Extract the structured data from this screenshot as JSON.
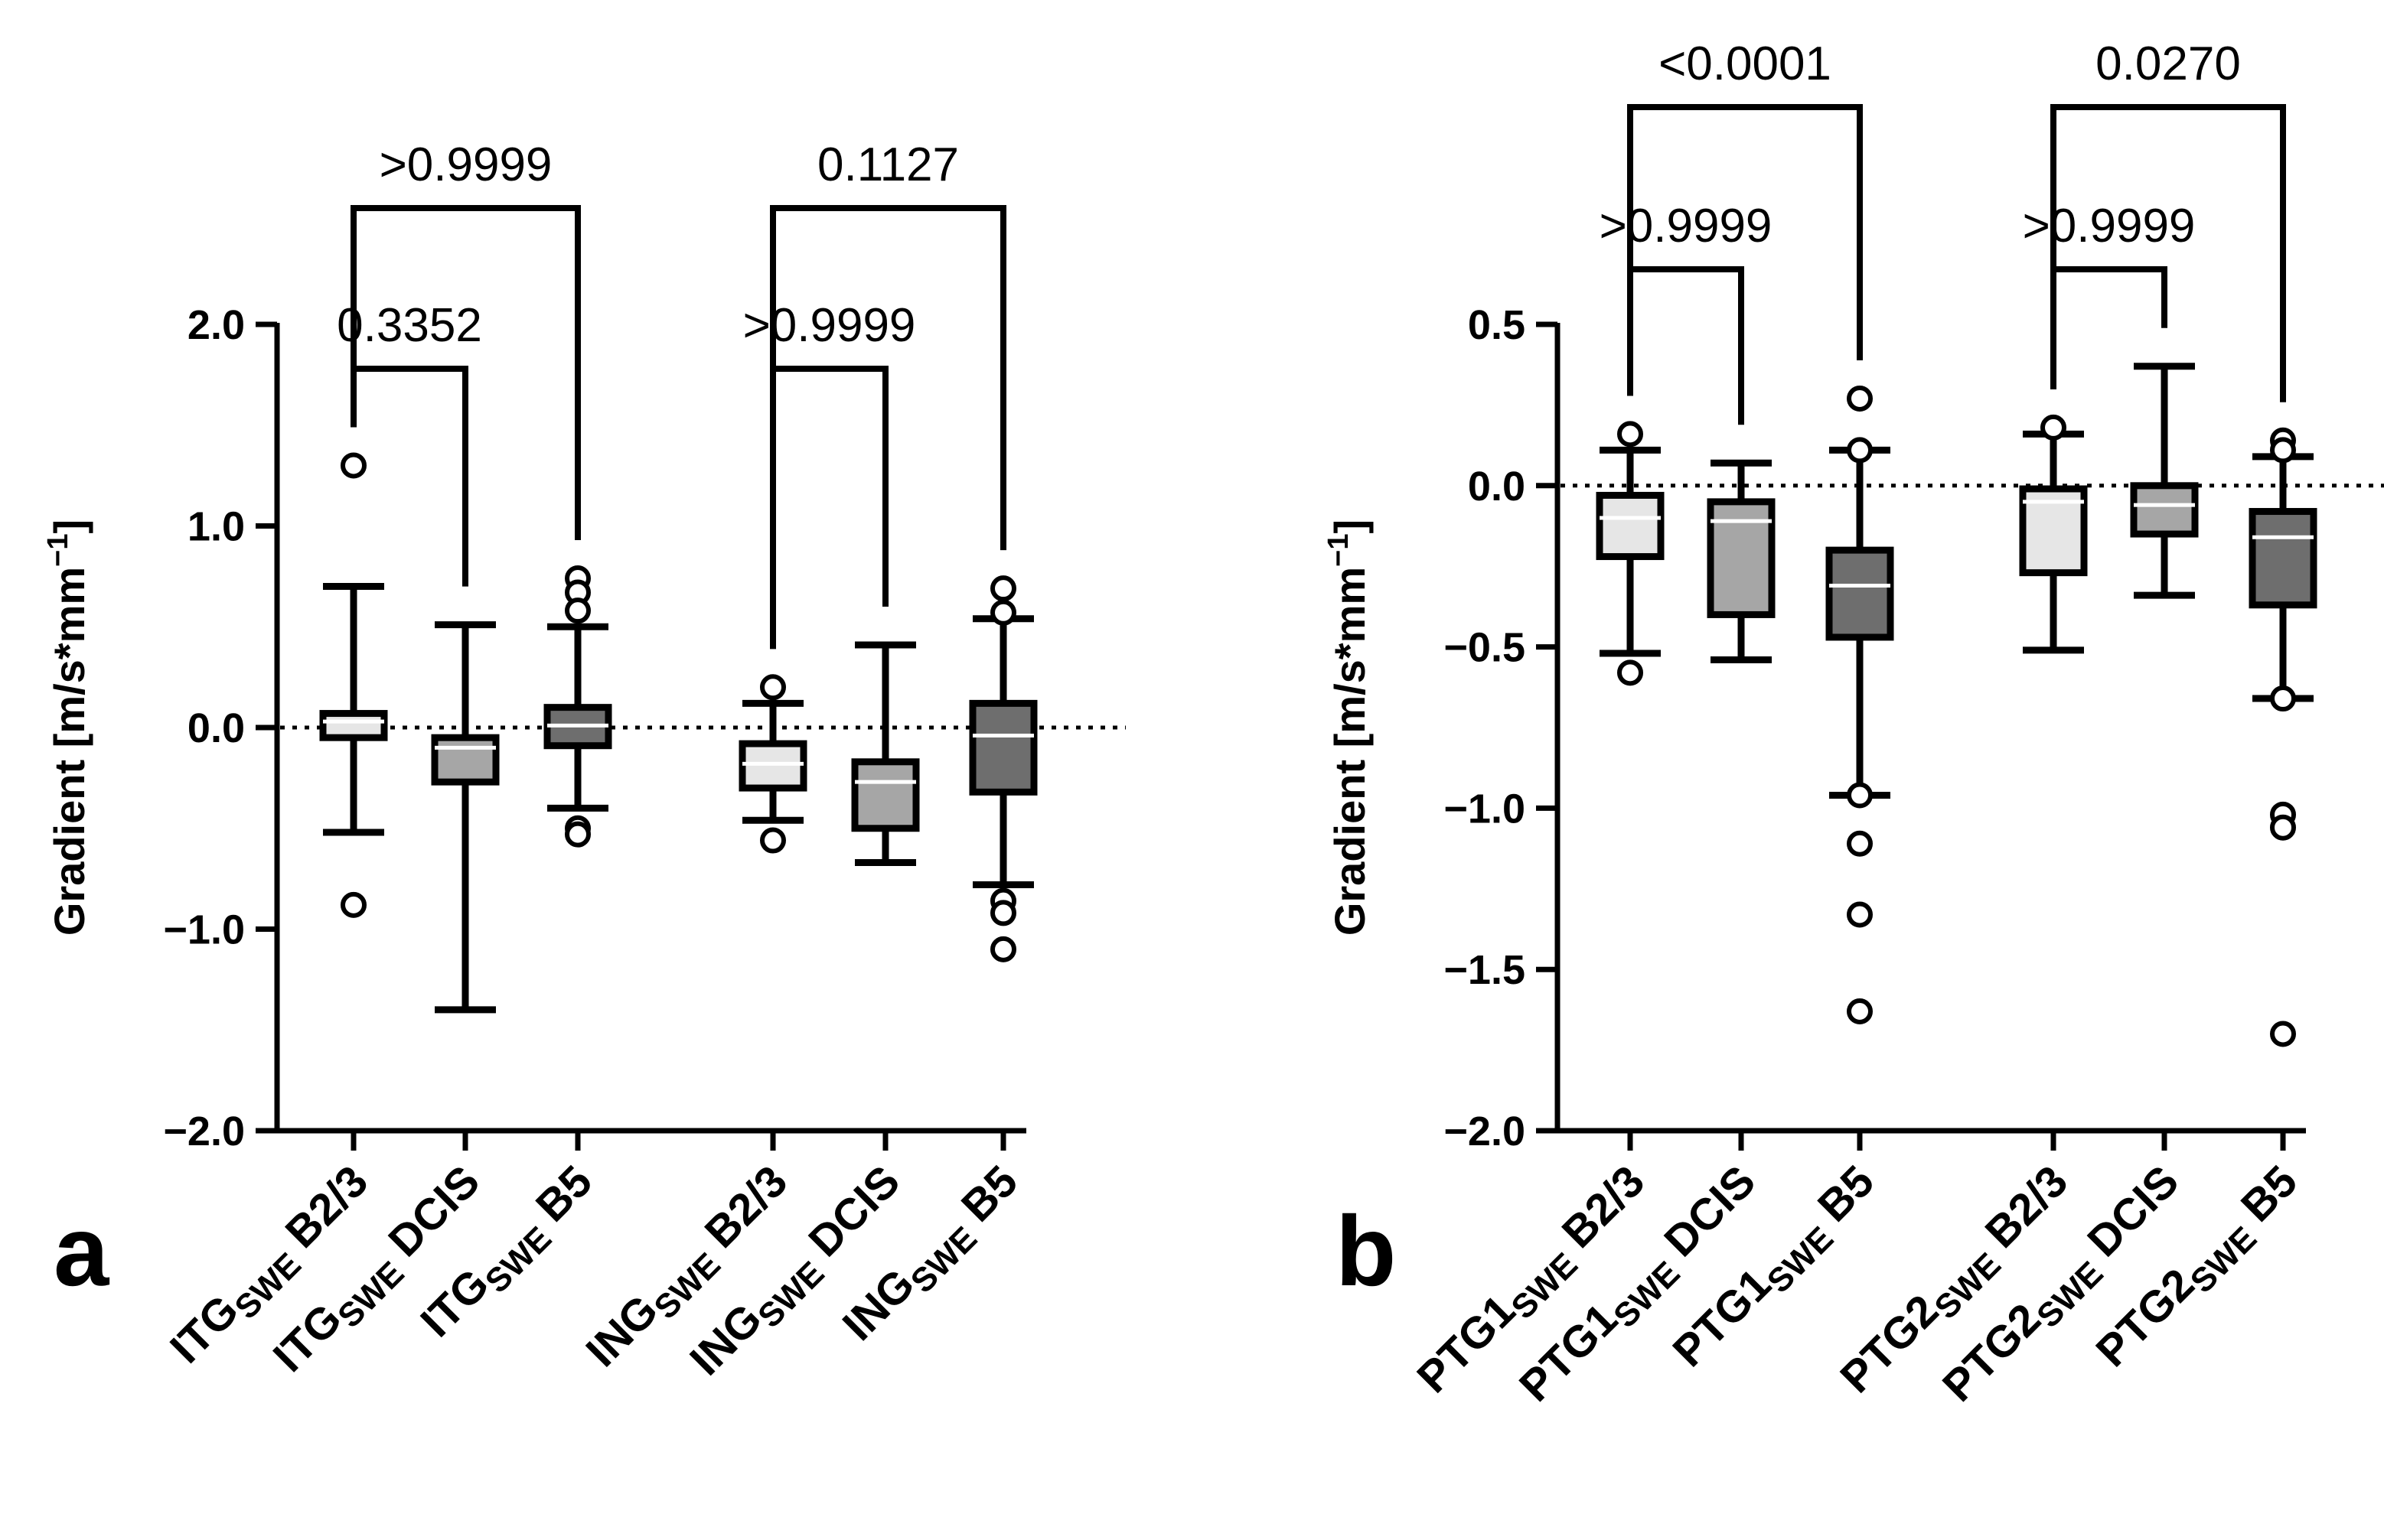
{
  "chart_data": [
    {
      "panel_label": "a",
      "type": "box",
      "ylabel": "Gradient [m/s*mm",
      "ylabel_exp": "−1",
      "ylabel_close": "]",
      "ylim": [
        -2.0,
        2.0
      ],
      "yticks": [
        2.0,
        1.0,
        0.0,
        -1.0,
        -2.0
      ],
      "ytick_labels": [
        "2.0",
        "1.0",
        "0.0",
        "−1.0",
        "−2.0"
      ],
      "reference_line": 0.0,
      "groups": [
        {
          "prefix": "ITG",
          "sub": "SWE",
          "suffix": " B2/3",
          "fill": "#e6e6e6",
          "whisker_low": -0.52,
          "q1": -0.05,
          "median": 0.03,
          "q3": 0.07,
          "whisker_high": 0.7,
          "outliers": [
            1.3,
            -0.88
          ]
        },
        {
          "prefix": "ITG",
          "sub": "SWE",
          "suffix": " DCIS",
          "fill": "#a6a6a6",
          "whisker_low": -1.4,
          "q1": -0.27,
          "median": -0.1,
          "q3": -0.05,
          "whisker_high": 0.51,
          "outliers": []
        },
        {
          "prefix": "ITG",
          "sub": "SWE",
          "suffix": " B5",
          "fill": "#6e6e6e",
          "whisker_low": -0.4,
          "q1": -0.09,
          "median": 0.01,
          "q3": 0.1,
          "whisker_high": 0.5,
          "outliers": [
            0.74,
            0.67,
            0.58,
            -0.5,
            -0.53
          ]
        },
        {
          "prefix": "ING",
          "sub": "SWE",
          "suffix": " B2/3",
          "fill": "#e6e6e6",
          "whisker_low": -0.46,
          "q1": -0.3,
          "median": -0.18,
          "q3": -0.08,
          "whisker_high": 0.12,
          "outliers": [
            0.2,
            -0.56
          ]
        },
        {
          "prefix": "ING",
          "sub": "SWE",
          "suffix": " DCIS",
          "fill": "#a6a6a6",
          "whisker_low": -0.67,
          "q1": -0.5,
          "median": -0.27,
          "q3": -0.17,
          "whisker_high": 0.41,
          "outliers": []
        },
        {
          "prefix": "ING",
          "sub": "SWE",
          "suffix": " B5",
          "fill": "#6e6e6e",
          "whisker_low": -0.78,
          "q1": -0.32,
          "median": -0.04,
          "q3": 0.12,
          "whisker_high": 0.54,
          "outliers": [
            0.69,
            0.57,
            -0.86,
            -0.92,
            -1.1
          ]
        }
      ],
      "comparisons": [
        {
          "from": 0,
          "to": 1,
          "label": "0.3352",
          "level": 1
        },
        {
          "from": 0,
          "to": 2,
          "label": ">0.9999",
          "level": 2
        },
        {
          "from": 3,
          "to": 4,
          "label": ">0.9999",
          "level": 1
        },
        {
          "from": 3,
          "to": 5,
          "label": "0.1127",
          "level": 2
        }
      ]
    },
    {
      "panel_label": "b",
      "type": "box",
      "ylabel": "Gradient [m/s*mm",
      "ylabel_exp": "−1",
      "ylabel_close": "]",
      "ylim": [
        -2.0,
        0.5
      ],
      "yticks": [
        0.5,
        0.0,
        -0.5,
        -1.0,
        -1.5,
        -2.0
      ],
      "ytick_labels": [
        "0.5",
        "0.0",
        "−0.5",
        "−1.0",
        "−1.5",
        "−2.0"
      ],
      "reference_line": 0.0,
      "groups": [
        {
          "prefix": "PTG1",
          "sub": "SWE",
          "suffix": " B2/3",
          "fill": "#e6e6e6",
          "whisker_low": -0.52,
          "q1": -0.22,
          "median": -0.1,
          "q3": -0.03,
          "whisker_high": 0.11,
          "outliers": [
            0.16,
            -0.58
          ]
        },
        {
          "prefix": "PTG1",
          "sub": "SWE",
          "suffix": " DCIS",
          "fill": "#a6a6a6",
          "whisker_low": -0.54,
          "q1": -0.4,
          "median": -0.11,
          "q3": -0.05,
          "whisker_high": 0.07,
          "outliers": []
        },
        {
          "prefix": "PTG1",
          "sub": "SWE",
          "suffix": " B5",
          "fill": "#6e6e6e",
          "whisker_low": -0.96,
          "q1": -0.47,
          "median": -0.31,
          "q3": -0.2,
          "whisker_high": 0.11,
          "outliers": [
            0.27,
            0.11,
            -0.96,
            -1.11,
            -1.33,
            -1.63
          ]
        },
        {
          "prefix": "PTG2",
          "sub": "SWE",
          "suffix": " B2/3",
          "fill": "#e6e6e6",
          "whisker_low": -0.51,
          "q1": -0.27,
          "median": -0.05,
          "q3": -0.01,
          "whisker_high": 0.16,
          "outliers": [
            0.18
          ]
        },
        {
          "prefix": "PTG2",
          "sub": "SWE",
          "suffix": " DCIS",
          "fill": "#a6a6a6",
          "whisker_low": -0.34,
          "q1": -0.15,
          "median": -0.06,
          "q3": 0.0,
          "whisker_high": 0.37,
          "outliers": []
        },
        {
          "prefix": "PTG2",
          "sub": "SWE",
          "suffix": " B5",
          "fill": "#6e6e6e",
          "whisker_low": -0.66,
          "q1": -0.37,
          "median": -0.16,
          "q3": -0.08,
          "whisker_high": 0.09,
          "outliers": [
            0.14,
            0.11,
            -0.66,
            -1.02,
            -1.06,
            -1.7
          ]
        }
      ],
      "comparisons": [
        {
          "from": 0,
          "to": 1,
          "label": ">0.9999",
          "level": 1
        },
        {
          "from": 0,
          "to": 2,
          "label": "<0.0001",
          "level": 2
        },
        {
          "from": 3,
          "to": 4,
          "label": ">0.9999",
          "level": 1
        },
        {
          "from": 3,
          "to": 5,
          "label": "0.0270",
          "level": 2
        }
      ]
    }
  ]
}
